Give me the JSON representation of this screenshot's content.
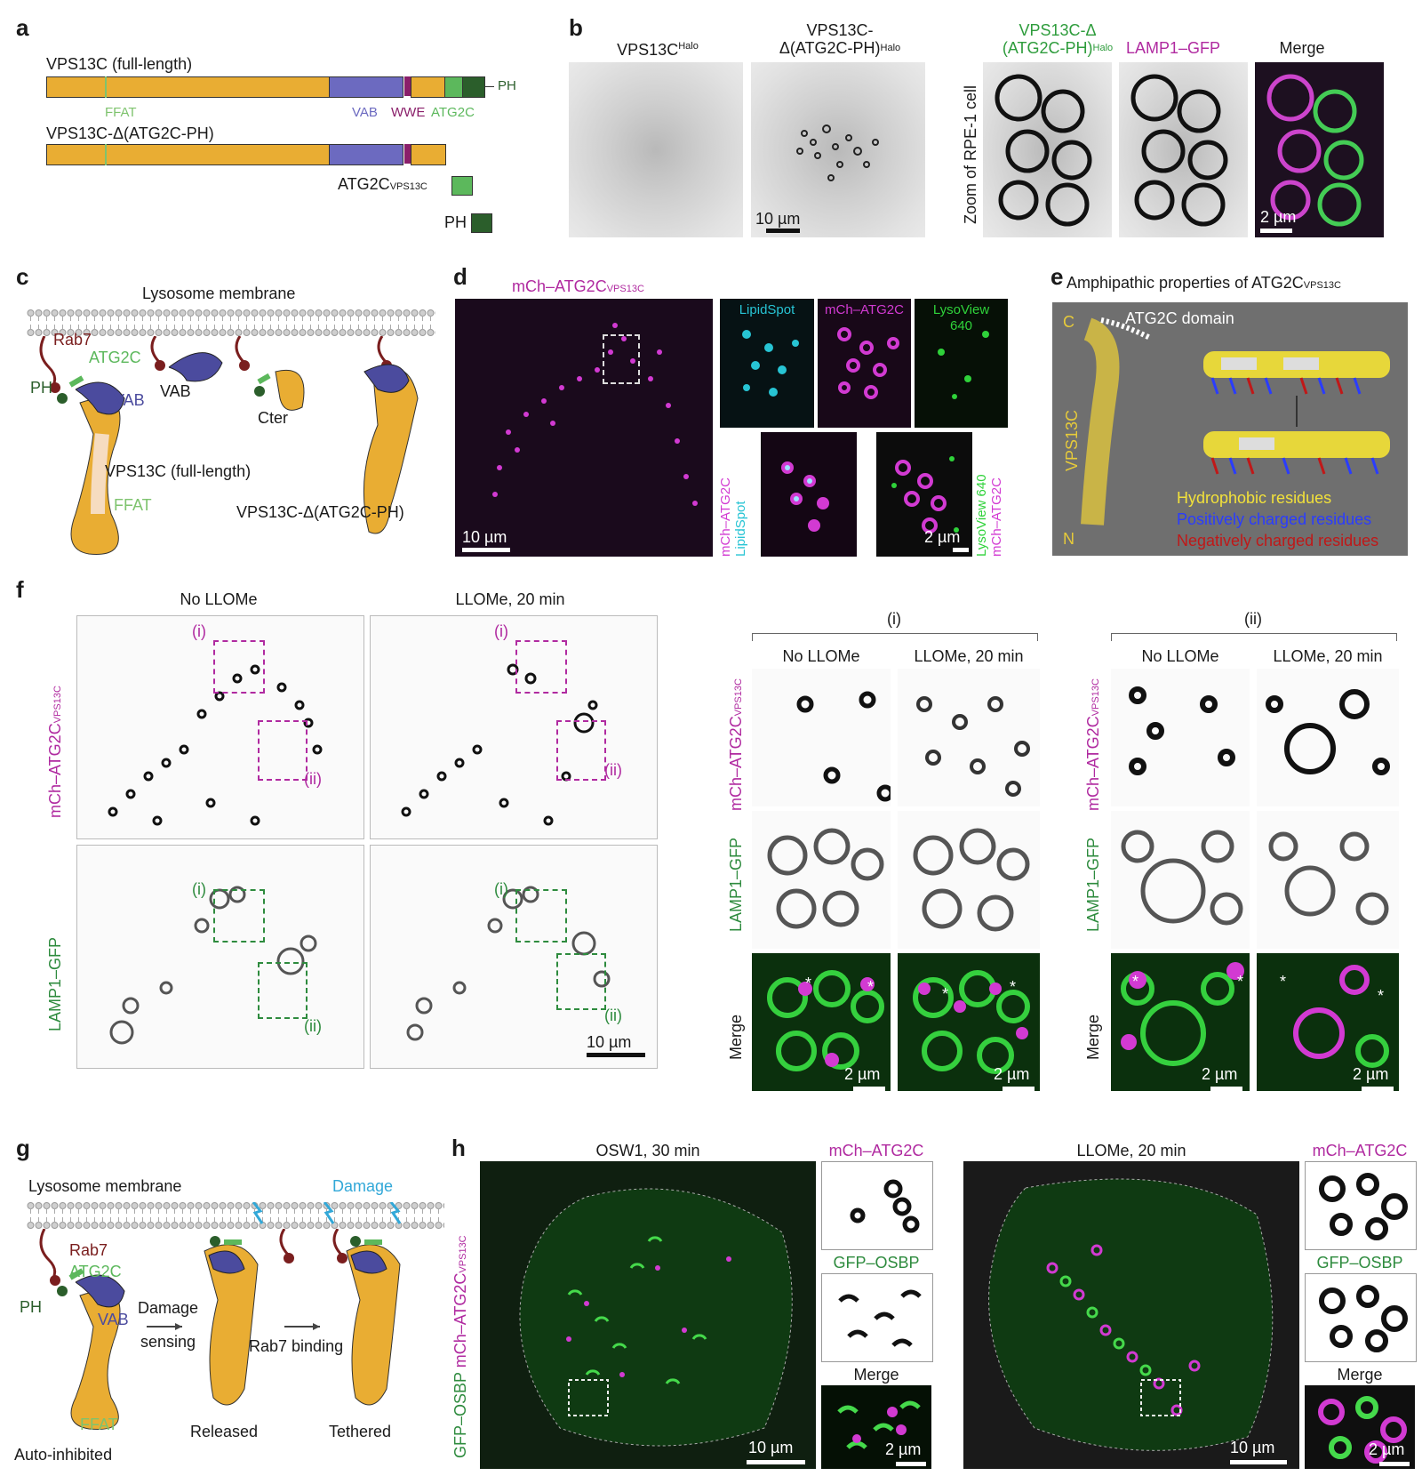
{
  "panels": {
    "a": {
      "label": "a",
      "full_length_title": "VPS13C (full-length)",
      "deleted_title": "VPS13C-Δ(ATG2C-PH)",
      "domain_labels": {
        "ffat": "FFAT",
        "vab": "VAB",
        "wwe": "WWE",
        "atg2c": "ATG2C",
        "ph": "PH"
      },
      "atg2c_vps13c_main": "ATG2C",
      "atg2c_vps13c_sub": "VPS13C",
      "ph_construct": "PH",
      "colors": {
        "body": "#e9ad33",
        "vab": "#6c6ac0",
        "wwe": "#8a1f6a",
        "atg2c": "#5cb85c",
        "ph": "#2b5e2b",
        "ffat": "#7ec36e"
      }
    },
    "b": {
      "label": "b",
      "col1_main": "VPS13C",
      "col1_sup": "Halo",
      "col2_line1": "VPS13C-",
      "col2_main": "Δ(ATG2C-PH)",
      "col2_sup": "Halo",
      "col3_line1": "VPS13C-Δ",
      "col3_main": "(ATG2C-PH)",
      "col3_sup": "Halo",
      "col4": "LAMP1–GFP",
      "col5": "Merge",
      "zoom_label": "Zoom of RPE-1 cell",
      "scale1": "10 µm",
      "scale2": "2 µm"
    },
    "c": {
      "label": "c",
      "membrane": "Lysosome membrane",
      "rab7": "Rab7",
      "atg2c": "ATG2C",
      "ph": "PH",
      "vab": "VAB",
      "vab2": "VAB",
      "cter": "Cter",
      "full": "VPS13C (full-length)",
      "ffat": "FFAT",
      "deleted": "VPS13C-Δ(ATG2C-PH)"
    },
    "d": {
      "label": "d",
      "title_main": "mCh–ATG2C",
      "title_sub": "VPS13C",
      "lipidspot": "LipidSpot",
      "mch": "mCh–ATG2C",
      "lysoview_1": "LysoView",
      "lysoview_2": "640",
      "merge_left_1": "mCh–ATG2C",
      "merge_left_2": "LipidSpot",
      "merge_right_1": "mCh–ATG2C",
      "merge_right_2": "LysoView 640",
      "scale1": "10 µm",
      "scale2": "2 µm"
    },
    "e": {
      "label": "e",
      "title_main": "Amphipathic properties of ATG2C",
      "title_sub": "VPS13C",
      "domain": "ATG2C domain",
      "c_term": "C",
      "n_term": "N",
      "protein": "VPS13C",
      "legend": [
        {
          "text": "Hydrophobic residues",
          "color": "#f2e13a"
        },
        {
          "text": "Positively charged residues",
          "color": "#2a3cff"
        },
        {
          "text": "Negatively charged residues",
          "color": "#c01818"
        }
      ]
    },
    "f": {
      "label": "f",
      "col1": "No LLOMe",
      "col2": "LLOMe, 20 min",
      "row1_main": "mCh–ATG2C",
      "row1_sub": "VPS13C",
      "row2": "LAMP1–GFP",
      "box_i": "(i)",
      "box_ii": "(ii)",
      "zoom_i": "(i)",
      "zoom_ii": "(ii)",
      "zcol1": "No LLOMe",
      "zcol2": "LLOMe, 20 min",
      "zcol3": "No LLOMe",
      "zcol4": "LLOMe, 20 min",
      "merge": "Merge",
      "merge2": "Merge",
      "scale_main": "10 µm",
      "scale_z": "2 µm",
      "asterisk": "*"
    },
    "g": {
      "label": "g",
      "membrane": "Lysosome membrane",
      "damage": "Damage",
      "rab7": "Rab7",
      "atg2c": "ATG2C",
      "ph": "PH",
      "vab": "VAB",
      "arrow1_1": "Damage",
      "arrow1_2": "sensing",
      "arrow2": "Rab7 binding",
      "ffat": "FFAT",
      "state1": "Auto-inhibited",
      "state2": "Released",
      "state3": "Tethered"
    },
    "h": {
      "label": "h",
      "side_1": "GFP–OSBP",
      "side_2": "mCh–ATG2C",
      "side_sub": "VPS13C",
      "title1": "OSW1, 30 min",
      "title2": "LLOMe, 20 min",
      "mch": "mCh–ATG2C",
      "gfp": "GFP–OSBP",
      "merge": "Merge",
      "scale1": "10 µm",
      "scale2": "2 µm"
    }
  }
}
